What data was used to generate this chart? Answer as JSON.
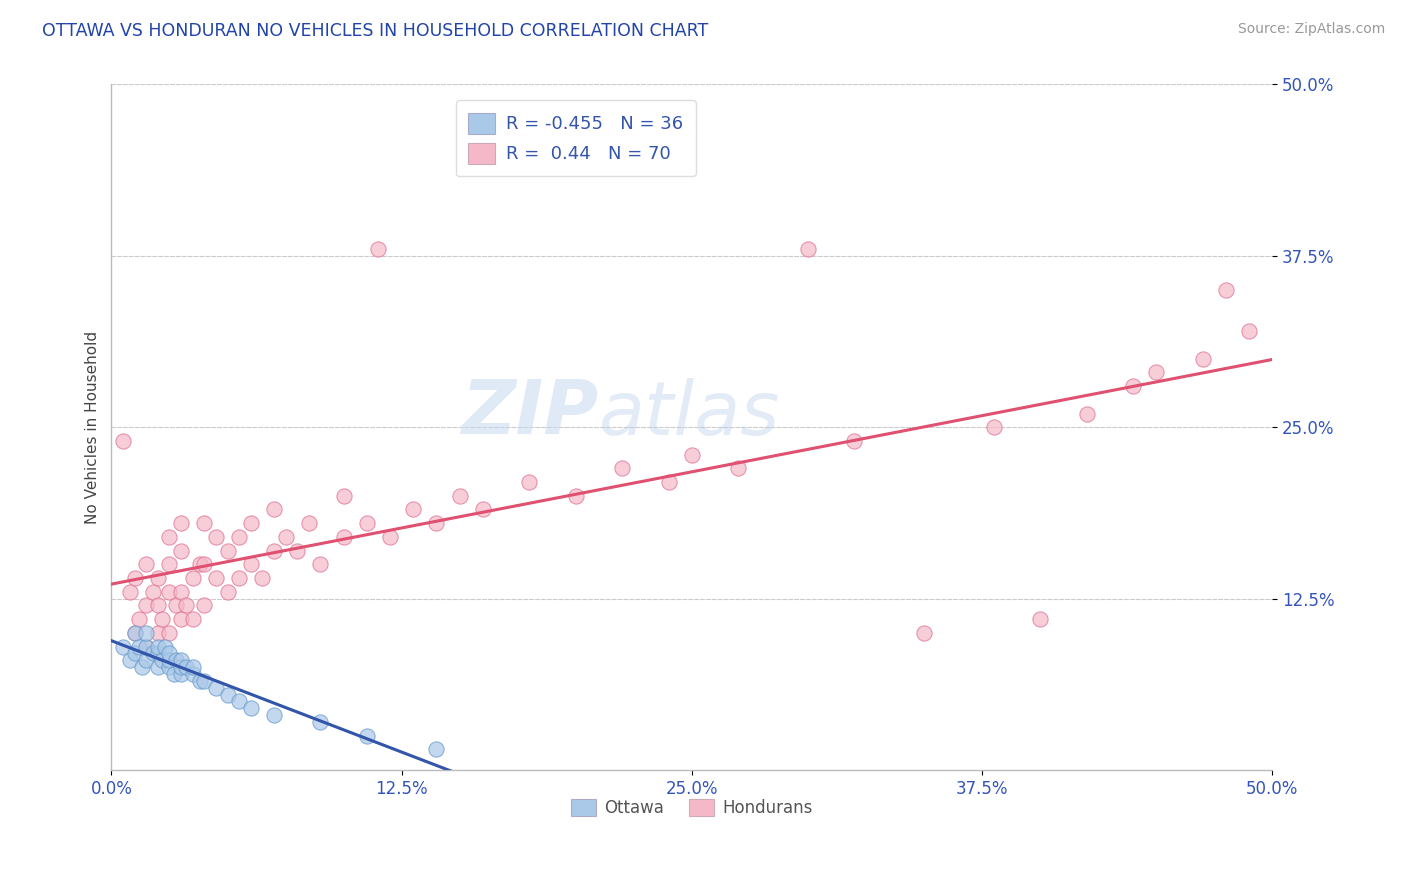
{
  "title": "OTTAWA VS HONDURAN NO VEHICLES IN HOUSEHOLD CORRELATION CHART",
  "source_text": "Source: ZipAtlas.com",
  "ylabel": "No Vehicles in Household",
  "xlim": [
    0.0,
    0.5
  ],
  "ylim": [
    0.0,
    0.5
  ],
  "xtick_labels": [
    "0.0%",
    "12.5%",
    "25.0%",
    "37.5%",
    "50.0%"
  ],
  "xtick_vals": [
    0.0,
    0.125,
    0.25,
    0.375,
    0.5
  ],
  "ytick_labels": [
    "12.5%",
    "25.0%",
    "37.5%",
    "50.0%"
  ],
  "ytick_vals": [
    0.125,
    0.25,
    0.375,
    0.5
  ],
  "ottawa_color": "#aac8e8",
  "honduran_color": "#f5b8c8",
  "ottawa_edge_color": "#6699cc",
  "honduran_edge_color": "#e07090",
  "ottawa_line_color": "#3355aa",
  "honduran_line_color": "#e05070",
  "ottawa_R": -0.455,
  "ottawa_N": 36,
  "honduran_R": 0.44,
  "honduran_N": 70,
  "legend_label_ottawa": "Ottawa",
  "legend_label_honduran": "Hondurans",
  "watermark_zip": "ZIP",
  "watermark_atlas": "atlas",
  "grid_color": "#cccccc",
  "ottawa_scatter_x": [
    0.005,
    0.008,
    0.01,
    0.01,
    0.012,
    0.013,
    0.015,
    0.015,
    0.015,
    0.018,
    0.02,
    0.02,
    0.02,
    0.022,
    0.023,
    0.025,
    0.025,
    0.025,
    0.027,
    0.028,
    0.03,
    0.03,
    0.03,
    0.032,
    0.035,
    0.035,
    0.038,
    0.04,
    0.045,
    0.05,
    0.055,
    0.06,
    0.07,
    0.09,
    0.11,
    0.14
  ],
  "ottawa_scatter_y": [
    0.09,
    0.08,
    0.1,
    0.085,
    0.09,
    0.075,
    0.08,
    0.09,
    0.1,
    0.085,
    0.075,
    0.085,
    0.09,
    0.08,
    0.09,
    0.075,
    0.08,
    0.085,
    0.07,
    0.08,
    0.07,
    0.075,
    0.08,
    0.075,
    0.07,
    0.075,
    0.065,
    0.065,
    0.06,
    0.055,
    0.05,
    0.045,
    0.04,
    0.035,
    0.025,
    0.015
  ],
  "honduran_scatter_x": [
    0.005,
    0.008,
    0.01,
    0.01,
    0.012,
    0.015,
    0.015,
    0.015,
    0.018,
    0.02,
    0.02,
    0.02,
    0.022,
    0.025,
    0.025,
    0.025,
    0.025,
    0.028,
    0.03,
    0.03,
    0.03,
    0.03,
    0.032,
    0.035,
    0.035,
    0.038,
    0.04,
    0.04,
    0.04,
    0.045,
    0.045,
    0.05,
    0.05,
    0.055,
    0.055,
    0.06,
    0.06,
    0.065,
    0.07,
    0.07,
    0.075,
    0.08,
    0.085,
    0.09,
    0.1,
    0.1,
    0.11,
    0.115,
    0.12,
    0.13,
    0.14,
    0.15,
    0.16,
    0.18,
    0.2,
    0.22,
    0.24,
    0.25,
    0.27,
    0.3,
    0.32,
    0.35,
    0.38,
    0.4,
    0.42,
    0.44,
    0.45,
    0.47,
    0.48,
    0.49
  ],
  "honduran_scatter_y": [
    0.24,
    0.13,
    0.1,
    0.14,
    0.11,
    0.09,
    0.12,
    0.15,
    0.13,
    0.1,
    0.12,
    0.14,
    0.11,
    0.1,
    0.13,
    0.15,
    0.17,
    0.12,
    0.11,
    0.13,
    0.16,
    0.18,
    0.12,
    0.11,
    0.14,
    0.15,
    0.12,
    0.15,
    0.18,
    0.14,
    0.17,
    0.13,
    0.16,
    0.14,
    0.17,
    0.15,
    0.18,
    0.14,
    0.16,
    0.19,
    0.17,
    0.16,
    0.18,
    0.15,
    0.17,
    0.2,
    0.18,
    0.38,
    0.17,
    0.19,
    0.18,
    0.2,
    0.19,
    0.21,
    0.2,
    0.22,
    0.21,
    0.23,
    0.22,
    0.38,
    0.24,
    0.1,
    0.25,
    0.11,
    0.26,
    0.28,
    0.29,
    0.3,
    0.35,
    0.32
  ]
}
